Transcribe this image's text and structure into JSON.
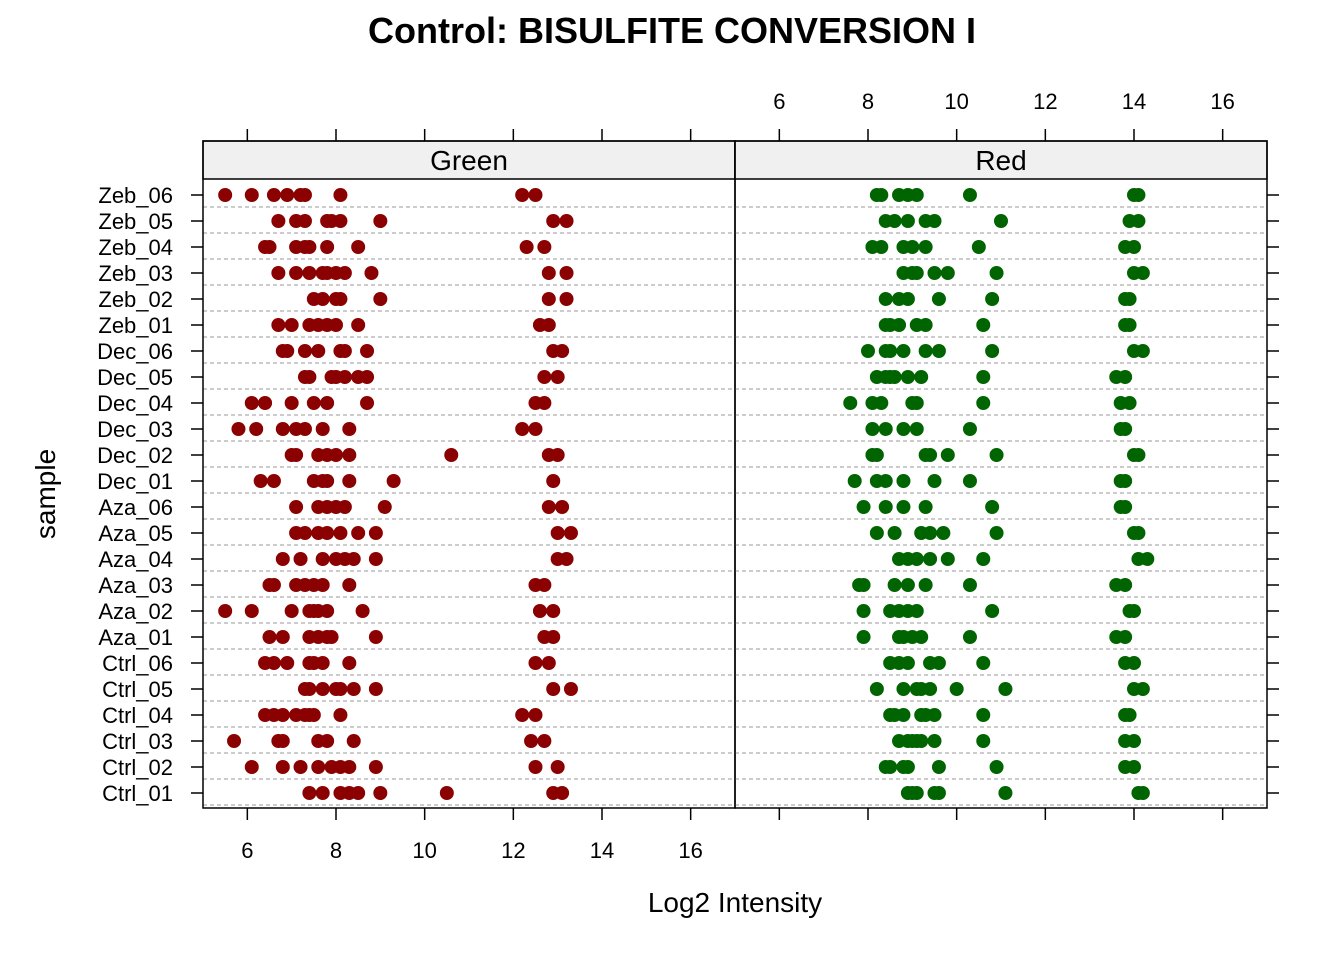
{
  "chart_data": {
    "type": "scatter",
    "title": "Control: BISULFITE CONVERSION I",
    "xlabel": "Log2 Intensity",
    "ylabel": "sample",
    "xlim": [
      5.0,
      17.0
    ],
    "xticks": [
      6,
      8,
      10,
      12,
      14,
      16
    ],
    "grid": "dashed horizontal lines per sample",
    "samples": [
      "Ctrl_01",
      "Ctrl_02",
      "Ctrl_03",
      "Ctrl_04",
      "Ctrl_05",
      "Ctrl_06",
      "Aza_01",
      "Aza_02",
      "Aza_03",
      "Aza_04",
      "Aza_05",
      "Aza_06",
      "Dec_01",
      "Dec_02",
      "Dec_03",
      "Dec_04",
      "Dec_05",
      "Dec_06",
      "Zeb_01",
      "Zeb_02",
      "Zeb_03",
      "Zeb_04",
      "Zeb_05",
      "Zeb_06"
    ],
    "panels": [
      {
        "name": "Green",
        "color": "#8b0000",
        "values": {
          "Ctrl_01": [
            7.4,
            7.7,
            8.1,
            8.3,
            8.5,
            9.0,
            10.5,
            12.9,
            13.1
          ],
          "Ctrl_02": [
            6.1,
            6.8,
            7.2,
            7.6,
            7.9,
            8.1,
            8.3,
            8.9,
            12.5,
            13.0
          ],
          "Ctrl_03": [
            5.7,
            6.7,
            6.8,
            7.6,
            7.8,
            8.4,
            12.4,
            12.7
          ],
          "Ctrl_04": [
            6.4,
            6.6,
            6.8,
            7.1,
            7.3,
            7.4,
            7.5,
            8.1,
            12.2,
            12.5
          ],
          "Ctrl_05": [
            7.3,
            7.4,
            7.7,
            8.0,
            8.1,
            8.4,
            8.9,
            12.9,
            13.3
          ],
          "Ctrl_06": [
            6.4,
            6.6,
            6.9,
            7.4,
            7.5,
            7.7,
            8.3,
            12.5,
            12.8
          ],
          "Aza_01": [
            6.5,
            6.8,
            7.4,
            7.6,
            7.8,
            7.9,
            8.9,
            12.7,
            12.9
          ],
          "Aza_02": [
            5.5,
            6.1,
            7.0,
            7.4,
            7.5,
            7.6,
            7.8,
            8.6,
            12.6,
            12.9
          ],
          "Aza_03": [
            6.5,
            6.6,
            7.1,
            7.3,
            7.5,
            7.7,
            8.3,
            12.5,
            12.7
          ],
          "Aza_04": [
            6.8,
            7.2,
            7.7,
            8.0,
            8.2,
            8.4,
            8.9,
            13.0,
            13.2
          ],
          "Aza_05": [
            7.1,
            7.3,
            7.6,
            7.8,
            8.1,
            8.5,
            8.9,
            13.0,
            13.3
          ],
          "Aza_06": [
            7.1,
            7.6,
            7.8,
            8.0,
            8.2,
            9.1,
            12.8,
            13.1
          ],
          "Dec_01": [
            6.3,
            6.6,
            7.5,
            7.7,
            7.8,
            8.3,
            9.3,
            12.9
          ],
          "Dec_02": [
            7.0,
            7.1,
            7.6,
            7.8,
            8.0,
            8.3,
            10.6,
            12.8,
            13.0
          ],
          "Dec_03": [
            5.8,
            6.2,
            6.8,
            7.1,
            7.3,
            7.7,
            8.3,
            12.2,
            12.5
          ],
          "Dec_04": [
            6.1,
            6.4,
            7.0,
            7.5,
            7.8,
            8.7,
            12.5,
            12.7
          ],
          "Dec_05": [
            7.3,
            7.4,
            7.9,
            8.0,
            8.2,
            8.5,
            8.7,
            12.7,
            13.0
          ],
          "Dec_06": [
            6.8,
            6.9,
            7.3,
            7.6,
            8.1,
            8.2,
            8.7,
            12.9,
            13.1
          ],
          "Zeb_01": [
            6.7,
            7.0,
            7.4,
            7.6,
            7.8,
            8.0,
            8.5,
            12.6,
            12.8
          ],
          "Zeb_02": [
            7.5,
            7.7,
            8.0,
            8.1,
            9.0,
            12.8,
            13.2
          ],
          "Zeb_03": [
            6.7,
            7.1,
            7.4,
            7.7,
            7.8,
            8.0,
            8.2,
            8.8,
            12.8,
            13.2
          ],
          "Zeb_04": [
            6.4,
            6.5,
            7.1,
            7.3,
            7.4,
            7.8,
            8.5,
            12.3,
            12.7
          ],
          "Zeb_05": [
            6.7,
            7.1,
            7.3,
            7.8,
            7.9,
            8.1,
            9.0,
            12.9,
            13.2
          ],
          "Zeb_06": [
            5.5,
            6.1,
            6.6,
            6.9,
            7.2,
            7.3,
            8.1,
            12.2,
            12.5
          ]
        }
      },
      {
        "name": "Red",
        "color": "#006400",
        "values": {
          "Ctrl_01": [
            8.9,
            9.0,
            9.1,
            9.5,
            9.6,
            11.1,
            14.1,
            14.2
          ],
          "Ctrl_02": [
            8.4,
            8.5,
            8.8,
            8.9,
            9.6,
            10.9,
            13.8,
            14.0
          ],
          "Ctrl_03": [
            8.7,
            8.9,
            9.0,
            9.1,
            9.2,
            9.5,
            10.6,
            13.8,
            14.0
          ],
          "Ctrl_04": [
            8.5,
            8.6,
            8.8,
            9.2,
            9.3,
            9.5,
            10.6,
            13.8,
            13.9
          ],
          "Ctrl_05": [
            8.2,
            8.8,
            9.1,
            9.2,
            9.4,
            10.0,
            11.1,
            14.0,
            14.2
          ],
          "Ctrl_06": [
            8.5,
            8.7,
            8.9,
            9.4,
            9.6,
            10.6,
            13.8,
            14.0
          ],
          "Aza_01": [
            7.9,
            8.7,
            8.8,
            9.0,
            9.2,
            10.3,
            13.6,
            13.8
          ],
          "Aza_02": [
            7.9,
            8.5,
            8.7,
            8.9,
            9.1,
            10.8,
            13.9,
            14.0
          ],
          "Aza_03": [
            7.8,
            7.9,
            8.6,
            8.9,
            9.3,
            10.3,
            13.6,
            13.8
          ],
          "Aza_04": [
            8.7,
            8.9,
            9.1,
            9.4,
            9.8,
            10.6,
            14.1,
            14.3
          ],
          "Aza_05": [
            8.2,
            8.6,
            9.2,
            9.4,
            9.7,
            10.9,
            14.0,
            14.1
          ],
          "Aza_06": [
            7.9,
            8.4,
            8.8,
            9.3,
            10.8,
            13.7,
            13.8
          ],
          "Dec_01": [
            7.7,
            8.2,
            8.4,
            8.8,
            9.5,
            10.3,
            13.7,
            13.8
          ],
          "Dec_02": [
            8.1,
            8.2,
            9.3,
            9.4,
            9.8,
            10.9,
            14.0,
            14.1
          ],
          "Dec_03": [
            8.1,
            8.4,
            8.8,
            9.1,
            10.3,
            13.7,
            13.8
          ],
          "Dec_04": [
            7.6,
            8.1,
            8.3,
            9.0,
            9.1,
            10.6,
            13.7,
            13.9
          ],
          "Dec_05": [
            8.2,
            8.4,
            8.5,
            8.6,
            8.9,
            9.2,
            10.6,
            13.6,
            13.8
          ],
          "Dec_06": [
            8.0,
            8.4,
            8.5,
            8.8,
            9.3,
            9.6,
            10.8,
            14.0,
            14.2
          ],
          "Zeb_01": [
            8.4,
            8.5,
            8.7,
            9.1,
            9.3,
            10.6,
            13.8,
            13.9
          ],
          "Zeb_02": [
            8.4,
            8.7,
            8.9,
            9.6,
            10.8,
            13.8,
            13.9
          ],
          "Zeb_03": [
            8.8,
            9.0,
            9.1,
            9.5,
            9.8,
            10.9,
            14.0,
            14.2
          ],
          "Zeb_04": [
            8.1,
            8.3,
            8.8,
            9.0,
            9.3,
            10.5,
            13.8,
            14.0
          ],
          "Zeb_05": [
            8.4,
            8.6,
            8.9,
            9.3,
            9.5,
            11.0,
            13.9,
            14.1
          ],
          "Zeb_06": [
            8.2,
            8.3,
            8.7,
            8.9,
            9.1,
            10.3,
            14.0,
            14.1
          ]
        }
      }
    ]
  }
}
